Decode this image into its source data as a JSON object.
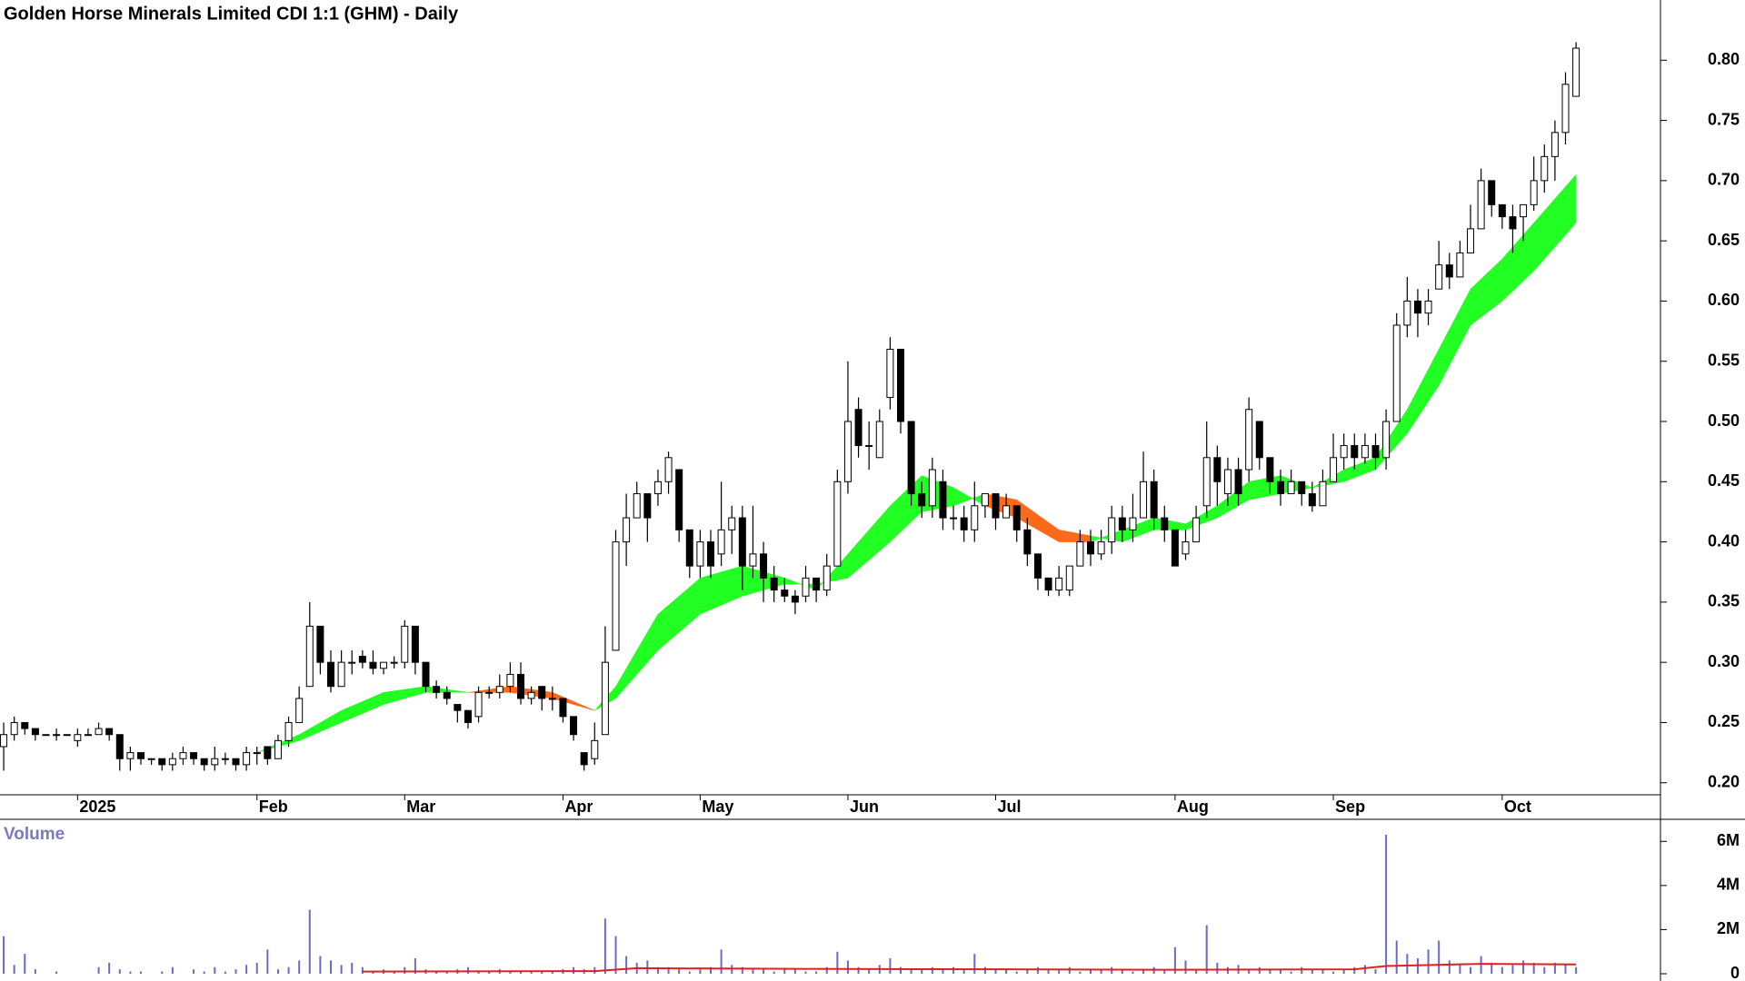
{
  "chart_data": {
    "type": "candlestick",
    "title": "Golden Horse Minerals Limited CDI 1:1 (GHM) - Daily",
    "up_color": "#ffffff",
    "down_color": "#000000",
    "candles": {
      "open": [
        0.23,
        0.24,
        0.25,
        0.245,
        0.24,
        0.24,
        0.24,
        0.235,
        0.24,
        0.24,
        0.245,
        0.24,
        0.22,
        0.225,
        0.22,
        0.22,
        0.215,
        0.22,
        0.225,
        0.22,
        0.215,
        0.22,
        0.22,
        0.215,
        0.225,
        0.23,
        0.22,
        0.235,
        0.25,
        0.28,
        0.33,
        0.3,
        0.28,
        0.3,
        0.305,
        0.3,
        0.295,
        0.3,
        0.3,
        0.33,
        0.3,
        0.28,
        0.275,
        0.265,
        0.26,
        0.255,
        0.275,
        0.275,
        0.28,
        0.29,
        0.27,
        0.28,
        0.27,
        0.27,
        0.255,
        0.225,
        0.22,
        0.24,
        0.31,
        0.4,
        0.42,
        0.44,
        0.44,
        0.45,
        0.46,
        0.41,
        0.38,
        0.4,
        0.39,
        0.41,
        0.42,
        0.38,
        0.39,
        0.37,
        0.36,
        0.355,
        0.355,
        0.37,
        0.36,
        0.38,
        0.45,
        0.51,
        0.48,
        0.47,
        0.52,
        0.56,
        0.5,
        0.44,
        0.43,
        0.45,
        0.42,
        0.42,
        0.41,
        0.43,
        0.44,
        0.42,
        0.43,
        0.41,
        0.39,
        0.37,
        0.36,
        0.36,
        0.38,
        0.4,
        0.39,
        0.4,
        0.42,
        0.41,
        0.42,
        0.45,
        0.42,
        0.41,
        0.39,
        0.4,
        0.43,
        0.47,
        0.44,
        0.46,
        0.46,
        0.5,
        0.47,
        0.45,
        0.44,
        0.45,
        0.44,
        0.43,
        0.45,
        0.47,
        0.48,
        0.47,
        0.48,
        0.47,
        0.5,
        0.58,
        0.6,
        0.59,
        0.61,
        0.63,
        0.62,
        0.64,
        0.66,
        0.7,
        0.68,
        0.67,
        0.67,
        0.68,
        0.7,
        0.72,
        0.74,
        0.77
      ],
      "high": [
        0.25,
        0.255,
        0.25,
        0.245,
        0.24,
        0.245,
        0.24,
        0.245,
        0.245,
        0.25,
        0.245,
        0.24,
        0.23,
        0.225,
        0.22,
        0.22,
        0.225,
        0.23,
        0.225,
        0.22,
        0.23,
        0.225,
        0.22,
        0.23,
        0.23,
        0.23,
        0.24,
        0.255,
        0.28,
        0.35,
        0.33,
        0.31,
        0.31,
        0.31,
        0.31,
        0.31,
        0.3,
        0.305,
        0.335,
        0.33,
        0.3,
        0.285,
        0.28,
        0.265,
        0.26,
        0.28,
        0.28,
        0.29,
        0.3,
        0.3,
        0.28,
        0.28,
        0.28,
        0.27,
        0.255,
        0.225,
        0.25,
        0.33,
        0.41,
        0.44,
        0.45,
        0.44,
        0.46,
        0.475,
        0.46,
        0.41,
        0.41,
        0.41,
        0.45,
        0.43,
        0.43,
        0.43,
        0.4,
        0.38,
        0.37,
        0.36,
        0.38,
        0.37,
        0.39,
        0.46,
        0.55,
        0.52,
        0.5,
        0.51,
        0.57,
        0.56,
        0.5,
        0.45,
        0.47,
        0.46,
        0.43,
        0.43,
        0.45,
        0.44,
        0.44,
        0.44,
        0.43,
        0.42,
        0.39,
        0.37,
        0.38,
        0.38,
        0.41,
        0.41,
        0.41,
        0.43,
        0.43,
        0.44,
        0.475,
        0.46,
        0.43,
        0.41,
        0.41,
        0.43,
        0.5,
        0.48,
        0.47,
        0.47,
        0.52,
        0.5,
        0.47,
        0.46,
        0.46,
        0.45,
        0.45,
        0.46,
        0.49,
        0.49,
        0.49,
        0.49,
        0.49,
        0.51,
        0.59,
        0.62,
        0.61,
        0.61,
        0.65,
        0.64,
        0.65,
        0.68,
        0.71,
        0.7,
        0.68,
        0.68,
        0.68,
        0.72,
        0.73,
        0.75,
        0.79,
        0.815
      ],
      "low": [
        0.21,
        0.235,
        0.24,
        0.235,
        0.24,
        0.235,
        0.24,
        0.23,
        0.24,
        0.24,
        0.235,
        0.21,
        0.21,
        0.215,
        0.215,
        0.21,
        0.21,
        0.215,
        0.215,
        0.21,
        0.21,
        0.215,
        0.21,
        0.21,
        0.215,
        0.215,
        0.22,
        0.23,
        0.25,
        0.28,
        0.29,
        0.275,
        0.28,
        0.29,
        0.295,
        0.29,
        0.29,
        0.295,
        0.295,
        0.29,
        0.275,
        0.27,
        0.265,
        0.25,
        0.245,
        0.25,
        0.27,
        0.27,
        0.275,
        0.265,
        0.265,
        0.26,
        0.26,
        0.25,
        0.235,
        0.21,
        0.215,
        0.24,
        0.31,
        0.38,
        0.42,
        0.4,
        0.43,
        0.44,
        0.4,
        0.37,
        0.37,
        0.37,
        0.38,
        0.39,
        0.36,
        0.37,
        0.35,
        0.35,
        0.35,
        0.34,
        0.35,
        0.35,
        0.355,
        0.38,
        0.44,
        0.47,
        0.46,
        0.47,
        0.51,
        0.49,
        0.43,
        0.42,
        0.42,
        0.41,
        0.41,
        0.4,
        0.4,
        0.42,
        0.41,
        0.42,
        0.4,
        0.38,
        0.36,
        0.355,
        0.355,
        0.355,
        0.38,
        0.38,
        0.385,
        0.39,
        0.4,
        0.4,
        0.42,
        0.41,
        0.4,
        0.38,
        0.385,
        0.4,
        0.42,
        0.43,
        0.43,
        0.43,
        0.45,
        0.46,
        0.44,
        0.43,
        0.44,
        0.43,
        0.425,
        0.43,
        0.45,
        0.46,
        0.46,
        0.465,
        0.46,
        0.46,
        0.5,
        0.57,
        0.57,
        0.58,
        0.61,
        0.61,
        0.62,
        0.64,
        0.66,
        0.67,
        0.66,
        0.64,
        0.65,
        0.675,
        0.69,
        0.7,
        0.73,
        0.77
      ],
      "close": [
        0.24,
        0.25,
        0.245,
        0.24,
        0.24,
        0.24,
        0.24,
        0.24,
        0.24,
        0.245,
        0.24,
        0.22,
        0.225,
        0.22,
        0.22,
        0.215,
        0.22,
        0.225,
        0.22,
        0.215,
        0.22,
        0.22,
        0.215,
        0.225,
        0.225,
        0.22,
        0.235,
        0.25,
        0.27,
        0.33,
        0.3,
        0.28,
        0.3,
        0.3,
        0.3,
        0.295,
        0.3,
        0.3,
        0.33,
        0.3,
        0.28,
        0.275,
        0.27,
        0.26,
        0.25,
        0.275,
        0.275,
        0.28,
        0.29,
        0.27,
        0.275,
        0.27,
        0.27,
        0.255,
        0.24,
        0.215,
        0.235,
        0.3,
        0.4,
        0.42,
        0.44,
        0.42,
        0.45,
        0.47,
        0.41,
        0.38,
        0.4,
        0.38,
        0.41,
        0.42,
        0.38,
        0.39,
        0.37,
        0.36,
        0.355,
        0.35,
        0.37,
        0.36,
        0.38,
        0.45,
        0.5,
        0.48,
        0.48,
        0.5,
        0.56,
        0.5,
        0.44,
        0.43,
        0.46,
        0.42,
        0.42,
        0.41,
        0.43,
        0.44,
        0.42,
        0.43,
        0.41,
        0.39,
        0.37,
        0.36,
        0.37,
        0.38,
        0.4,
        0.39,
        0.4,
        0.42,
        0.41,
        0.42,
        0.45,
        0.42,
        0.41,
        0.38,
        0.4,
        0.42,
        0.47,
        0.45,
        0.46,
        0.44,
        0.51,
        0.47,
        0.45,
        0.44,
        0.45,
        0.44,
        0.43,
        0.45,
        0.47,
        0.48,
        0.47,
        0.48,
        0.47,
        0.5,
        0.58,
        0.6,
        0.59,
        0.6,
        0.63,
        0.62,
        0.64,
        0.66,
        0.7,
        0.68,
        0.67,
        0.66,
        0.68,
        0.7,
        0.72,
        0.74,
        0.78,
        0.81
      ]
    },
    "xlim": [
      -0.35,
      157
    ],
    "xticks": [
      {
        "value": 7,
        "label": "2025"
      },
      {
        "value": 24,
        "label": "Feb"
      },
      {
        "value": 38,
        "label": "Mar"
      },
      {
        "value": 53,
        "label": "Apr"
      },
      {
        "value": 66,
        "label": "May"
      },
      {
        "value": 80,
        "label": "Jun"
      },
      {
        "value": 94,
        "label": "Jul"
      },
      {
        "value": 111,
        "label": "Aug"
      },
      {
        "value": 126,
        "label": "Sep"
      },
      {
        "value": 142,
        "label": "Oct"
      }
    ],
    "ylim": [
      0.19,
      0.85
    ],
    "yticks": [
      {
        "value": 0.2,
        "label": "0.20"
      },
      {
        "value": 0.25,
        "label": "0.25"
      },
      {
        "value": 0.3,
        "label": "0.30"
      },
      {
        "value": 0.35,
        "label": "0.35"
      },
      {
        "value": 0.4,
        "label": "0.40"
      },
      {
        "value": 0.45,
        "label": "0.45"
      },
      {
        "value": 0.5,
        "label": "0.50"
      },
      {
        "value": 0.55,
        "label": "0.55"
      },
      {
        "value": 0.6,
        "label": "0.60"
      },
      {
        "value": 0.65,
        "label": "0.65"
      },
      {
        "value": 0.7,
        "label": "0.70"
      },
      {
        "value": 0.75,
        "label": "0.75"
      },
      {
        "value": 0.8,
        "label": "0.80"
      }
    ],
    "ribbon": {
      "up_color": "#22ff22",
      "down_color": "#ff6a1a",
      "x": [
        24,
        28,
        32,
        36,
        40,
        44,
        48,
        52,
        56,
        58,
        62,
        66,
        70,
        74,
        77,
        80,
        84,
        87,
        90,
        93,
        96,
        100,
        103,
        106,
        109,
        112,
        115,
        118,
        121,
        124,
        127,
        130,
        133,
        136,
        139,
        142,
        145,
        149
      ],
      "fast": [
        0.225,
        0.24,
        0.26,
        0.275,
        0.28,
        0.275,
        0.275,
        0.27,
        0.26,
        0.28,
        0.34,
        0.37,
        0.38,
        0.37,
        0.36,
        0.39,
        0.43,
        0.455,
        0.445,
        0.43,
        0.42,
        0.4,
        0.4,
        0.41,
        0.42,
        0.415,
        0.43,
        0.45,
        0.455,
        0.445,
        0.46,
        0.47,
        0.51,
        0.56,
        0.61,
        0.635,
        0.665,
        0.705
      ],
      "slow": [
        0.225,
        0.235,
        0.25,
        0.265,
        0.275,
        0.275,
        0.28,
        0.275,
        0.26,
        0.27,
        0.31,
        0.34,
        0.355,
        0.365,
        0.365,
        0.37,
        0.4,
        0.425,
        0.43,
        0.44,
        0.435,
        0.41,
        0.405,
        0.4,
        0.41,
        0.41,
        0.42,
        0.435,
        0.44,
        0.445,
        0.45,
        0.46,
        0.49,
        0.53,
        0.58,
        0.6,
        0.625,
        0.665
      ]
    },
    "volume": {
      "title": "Volume",
      "color": "#6a6ac8",
      "values": [
        1700000,
        400000,
        900000,
        200000,
        0,
        100000,
        0,
        0,
        0,
        300000,
        500000,
        200000,
        100000,
        100000,
        0,
        100000,
        300000,
        0,
        200000,
        100000,
        300000,
        100000,
        200000,
        400000,
        500000,
        1100000,
        200000,
        300000,
        600000,
        2900000,
        800000,
        600000,
        400000,
        500000,
        300000,
        100000,
        200000,
        100000,
        300000,
        700000,
        200000,
        100000,
        100000,
        200000,
        300000,
        100000,
        100000,
        200000,
        100000,
        100000,
        100000,
        100000,
        100000,
        200000,
        300000,
        200000,
        300000,
        2500000,
        1700000,
        800000,
        500000,
        600000,
        300000,
        300000,
        200000,
        100000,
        200000,
        300000,
        1100000,
        400000,
        300000,
        200000,
        200000,
        100000,
        200000,
        200000,
        100000,
        100000,
        300000,
        1000000,
        600000,
        300000,
        200000,
        400000,
        700000,
        300000,
        200000,
        200000,
        300000,
        200000,
        300000,
        200000,
        900000,
        300000,
        200000,
        200000,
        100000,
        200000,
        300000,
        200000,
        200000,
        300000,
        100000,
        200000,
        200000,
        300000,
        200000,
        100000,
        200000,
        300000,
        200000,
        1200000,
        600000,
        200000,
        2200000,
        500000,
        300000,
        400000,
        200000,
        300000,
        200000,
        200000,
        100000,
        300000,
        200000,
        200000,
        100000,
        200000,
        300000,
        400000,
        200000,
        6300000,
        1500000,
        900000,
        700000,
        1100000,
        1500000,
        600000,
        400000,
        300000,
        800000,
        500000,
        300000,
        400000,
        600000,
        500000,
        300000,
        500000,
        400000,
        300000
      ],
      "ylim": [
        0,
        7000000
      ],
      "yticks": [
        {
          "value": 0,
          "label": "0"
        },
        {
          "value": 2000000,
          "label": "2M"
        },
        {
          "value": 4000000,
          "label": "4M"
        },
        {
          "value": 6000000,
          "label": "6M"
        }
      ],
      "ma": {
        "color": "#e02020",
        "x": [
          34,
          56,
          60,
          75,
          95,
          110,
          128,
          131,
          140,
          149
        ],
        "values": [
          100000,
          120000,
          250000,
          220000,
          200000,
          180000,
          200000,
          350000,
          450000,
          420000
        ]
      }
    }
  }
}
